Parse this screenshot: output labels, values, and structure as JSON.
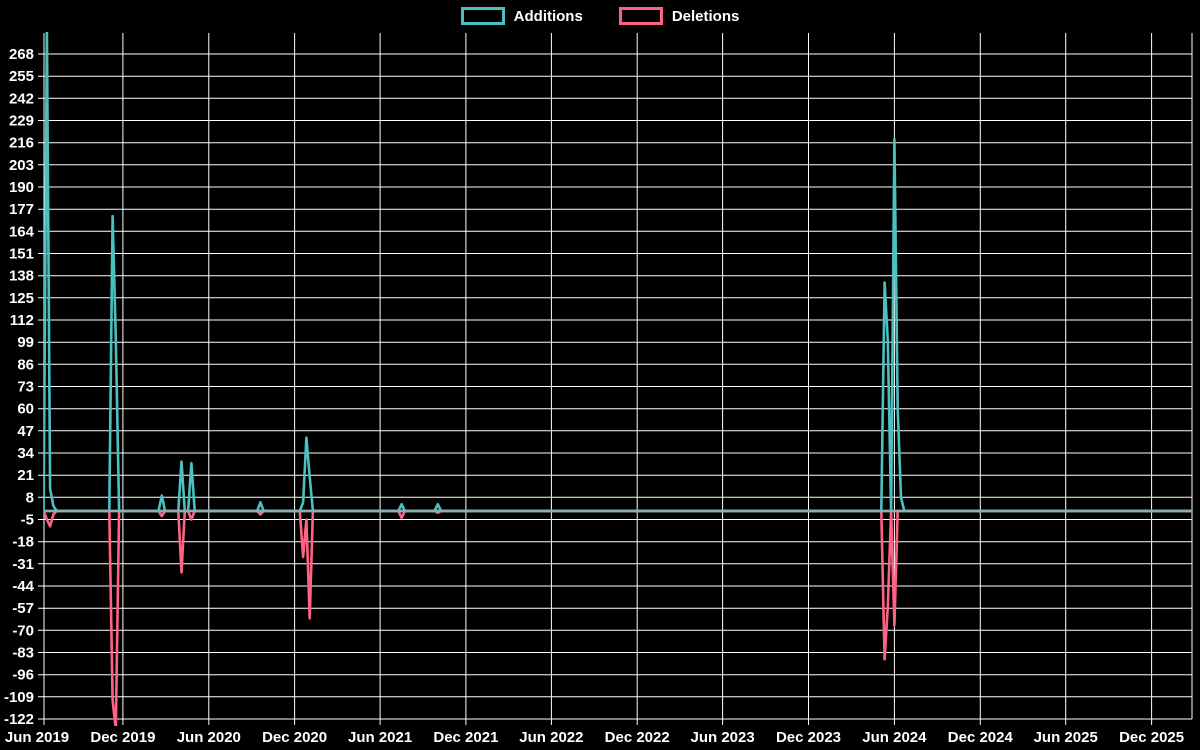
{
  "chart_data": {
    "type": "line",
    "title": "",
    "background_color": "#000000",
    "grid_color": "#ffffff",
    "text_color": "#ffffff",
    "legend_position": "top",
    "baseline_value": 0,
    "baseline_overlap_color": "#8CACB6",
    "point_interval_days": 7,
    "x_axis": {
      "start_date": "2019-06-01",
      "tick_interval_months": 6,
      "tick_labels": [
        "Jun 2019",
        "Dec 2019",
        "Jun 2020",
        "Dec 2020",
        "Jun 2021",
        "Dec 2021",
        "Jun 2022",
        "Dec 2022",
        "Jun 2023",
        "Dec 2023",
        "Jun 2024",
        "Dec 2024",
        "Jun 2025",
        "Dec 2025"
      ]
    },
    "y_axis": {
      "tick_max": 268,
      "tick_min": -122,
      "tick_step": -13,
      "tick_labels": [
        "268",
        "255",
        "242",
        "229",
        "216",
        "203",
        "190",
        "177",
        "164",
        "151",
        "138",
        "125",
        "112",
        "99",
        "86",
        "73",
        "60",
        "47",
        "34",
        "21",
        "8",
        "-5",
        "-18",
        "-31",
        "-44",
        "-57",
        "-70",
        "-83",
        "-96",
        "-109",
        "-122"
      ]
    },
    "series": [
      {
        "name": "Additions",
        "color": "#4bc0c0",
        "points": [
          {
            "date": "2019-06-22",
            "value": 283
          },
          {
            "date": "2019-06-29",
            "value": 13
          },
          {
            "date": "2019-07-06",
            "value": 3
          },
          {
            "date": "2019-11-09",
            "value": 173
          },
          {
            "date": "2019-11-16",
            "value": 101
          },
          {
            "date": "2020-02-22",
            "value": 9
          },
          {
            "date": "2020-04-04",
            "value": 29
          },
          {
            "date": "2020-04-25",
            "value": 28
          },
          {
            "date": "2020-09-19",
            "value": 5
          },
          {
            "date": "2020-12-19",
            "value": 5
          },
          {
            "date": "2020-12-26",
            "value": 43
          },
          {
            "date": "2021-01-02",
            "value": 20
          },
          {
            "date": "2021-07-17",
            "value": 4
          },
          {
            "date": "2021-10-02",
            "value": 4
          },
          {
            "date": "2024-05-11",
            "value": 134
          },
          {
            "date": "2024-05-18",
            "value": 100
          },
          {
            "date": "2024-06-01",
            "value": 218
          },
          {
            "date": "2024-06-08",
            "value": 60
          },
          {
            "date": "2024-06-15",
            "value": 8
          }
        ]
      },
      {
        "name": "Deletions",
        "color": "#ff6384",
        "points": [
          {
            "date": "2019-06-22",
            "value": -5
          },
          {
            "date": "2019-06-29",
            "value": -9
          },
          {
            "date": "2019-07-06",
            "value": -2
          },
          {
            "date": "2019-11-09",
            "value": -111
          },
          {
            "date": "2019-11-16",
            "value": -128
          },
          {
            "date": "2020-02-22",
            "value": -3
          },
          {
            "date": "2020-04-04",
            "value": -36
          },
          {
            "date": "2020-04-25",
            "value": -5
          },
          {
            "date": "2020-09-19",
            "value": -2
          },
          {
            "date": "2020-12-19",
            "value": -27
          },
          {
            "date": "2020-12-26",
            "value": -5
          },
          {
            "date": "2021-01-02",
            "value": -63
          },
          {
            "date": "2021-07-17",
            "value": -4
          },
          {
            "date": "2021-10-02",
            "value": -1
          },
          {
            "date": "2024-05-11",
            "value": -87
          },
          {
            "date": "2024-05-18",
            "value": -56
          },
          {
            "date": "2024-06-01",
            "value": -67
          }
        ]
      }
    ]
  }
}
